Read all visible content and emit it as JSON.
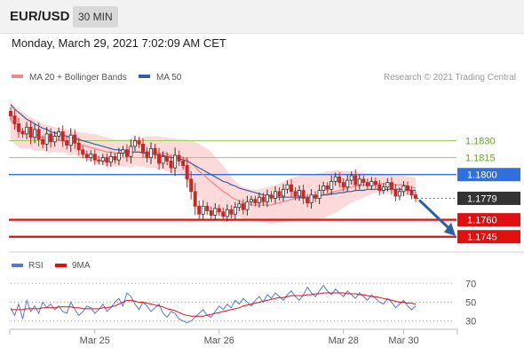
{
  "header": {
    "pair": "EUR/USD",
    "timeframe": "30 MIN",
    "datetime": "Monday, March 29, 2021 7:02:09 AM CET"
  },
  "colors": {
    "price_up": "#333333",
    "price_down": "#c62828",
    "ma20": "#ef8a8a",
    "bollinger_fill": "#fbd3d3",
    "ma50": "#3a5fa0",
    "resistance": "#9ccb5e",
    "pivot": "#2f6fe0",
    "support": "#e01010",
    "current": "#333333",
    "rsi": "#5577dd",
    "rsi_ma": "#e01010",
    "arrow": "#2f5e9e"
  },
  "chart_data": [
    {
      "type": "candlestick",
      "legend": [
        {
          "name": "MA 20 + Bollinger Bands",
          "color": "#ef8a8a"
        },
        {
          "name": "MA 50",
          "color": "#3a5fa0"
        }
      ],
      "watermark": "Research © 2021 Trading Central",
      "ylim": [
        1.1733,
        1.1876
      ],
      "x_ticks": [
        {
          "label": "Mar 25",
          "index": 21
        },
        {
          "label": "Mar 26",
          "index": 52
        },
        {
          "label": "Mar 28",
          "index": 83
        },
        {
          "label": "Mar 30",
          "index": 98
        }
      ],
      "levels": [
        {
          "label": "1.1830",
          "value": 1.183,
          "kind": "resistance"
        },
        {
          "label": "1.1815",
          "value": 1.1815,
          "kind": "resistance"
        },
        {
          "label": "1.1800",
          "value": 1.18,
          "kind": "pivot"
        },
        {
          "label": "1.1779",
          "value": 1.1779,
          "kind": "current"
        },
        {
          "label": "1.1760",
          "value": 1.176,
          "kind": "support"
        },
        {
          "label": "1.1745",
          "value": 1.1745,
          "kind": "support"
        }
      ],
      "close": [
        1.1852,
        1.1845,
        1.1838,
        1.1836,
        1.1842,
        1.1833,
        1.184,
        1.1831,
        1.1827,
        1.1836,
        1.1829,
        1.1834,
        1.1838,
        1.183,
        1.1826,
        1.1835,
        1.1828,
        1.1822,
        1.1818,
        1.1815,
        1.1818,
        1.1813,
        1.1812,
        1.1815,
        1.1811,
        1.1816,
        1.1813,
        1.1819,
        1.1822,
        1.1816,
        1.1825,
        1.183,
        1.1827,
        1.182,
        1.1815,
        1.1823,
        1.1818,
        1.181,
        1.1816,
        1.1812,
        1.1806,
        1.1817,
        1.1812,
        1.1808,
        1.1796,
        1.1785,
        1.1772,
        1.1765,
        1.1772,
        1.1768,
        1.1764,
        1.177,
        1.1767,
        1.1763,
        1.1769,
        1.1765,
        1.1771,
        1.1774,
        1.1769,
        1.1776,
        1.1778,
        1.1775,
        1.178,
        1.1776,
        1.1782,
        1.1779,
        1.1785,
        1.1781,
        1.1787,
        1.1791,
        1.1785,
        1.1781,
        1.1786,
        1.1779,
        1.1775,
        1.1782,
        1.1779,
        1.1786,
        1.179,
        1.1787,
        1.1794,
        1.1798,
        1.1793,
        1.1789,
        1.1795,
        1.1799,
        1.1791,
        1.1796,
        1.1793,
        1.179,
        1.1794,
        1.1791,
        1.1786,
        1.1789,
        1.1793,
        1.1787,
        1.1781,
        1.1785,
        1.179,
        1.1786,
        1.1782,
        1.1779
      ],
      "ma20": [
        1.1848,
        1.1844,
        1.1841,
        1.1839,
        1.1838,
        1.1837,
        1.1835,
        1.1834,
        1.1833,
        1.1832,
        1.1831,
        1.1831,
        1.183,
        1.183,
        1.1829,
        1.1828,
        1.1828,
        1.1827,
        1.1826,
        1.1825,
        1.1824,
        1.1823,
        1.1822,
        1.1821,
        1.182,
        1.182,
        1.1819,
        1.1819,
        1.1819,
        1.1819,
        1.1819,
        1.182,
        1.182,
        1.182,
        1.182,
        1.182,
        1.182,
        1.1819,
        1.1819,
        1.1818,
        1.1817,
        1.1817,
        1.1816,
        1.1815,
        1.1813,
        1.181,
        1.1807,
        1.1803,
        1.18,
        1.1797,
        1.1794,
        1.1791,
        1.1788,
        1.1785,
        1.1783,
        1.178,
        1.1778,
        1.1777,
        1.1775,
        1.1774,
        1.1773,
        1.1773,
        1.1773,
        1.1773,
        1.1773,
        1.1773,
        1.1774,
        1.1775,
        1.1776,
        1.1777,
        1.1778,
        1.1779,
        1.1779,
        1.178,
        1.178,
        1.178,
        1.1781,
        1.1781,
        1.1782,
        1.1783,
        1.1784,
        1.1785,
        1.1786,
        1.1787,
        1.1788,
        1.1789,
        1.179,
        1.179,
        1.1791,
        1.1791,
        1.1792,
        1.1792,
        1.1792,
        1.1792,
        1.1792,
        1.1792,
        1.1791,
        1.1791,
        1.1791,
        1.179,
        1.1789,
        1.1788
      ],
      "bb_upper": [
        1.1864,
        1.1861,
        1.1858,
        1.1855,
        1.1853,
        1.1851,
        1.1849,
        1.1847,
        1.1845,
        1.1844,
        1.1843,
        1.1842,
        1.1841,
        1.184,
        1.184,
        1.1839,
        1.1838,
        1.1838,
        1.1837,
        1.1837,
        1.1836,
        1.1836,
        1.1835,
        1.1834,
        1.1833,
        1.1832,
        1.1831,
        1.1831,
        1.1831,
        1.1831,
        1.1832,
        1.1832,
        1.1833,
        1.1833,
        1.1834,
        1.1834,
        1.1834,
        1.1834,
        1.1833,
        1.1833,
        1.1832,
        1.1832,
        1.1831,
        1.1831,
        1.1831,
        1.183,
        1.1829,
        1.1827,
        1.1825,
        1.1823,
        1.182,
        1.1816,
        1.1812,
        1.1808,
        1.1803,
        1.1798,
        1.1794,
        1.1791,
        1.1789,
        1.1788,
        1.1787,
        1.1787,
        1.1787,
        1.1788,
        1.1789,
        1.179,
        1.1791,
        1.1792,
        1.1794,
        1.1796,
        1.1797,
        1.1798,
        1.1799,
        1.18,
        1.18,
        1.18,
        1.1801,
        1.1801,
        1.1802,
        1.1803,
        1.1803,
        1.1804,
        1.1804,
        1.1803,
        1.1803,
        1.1803,
        1.1803,
        1.1802,
        1.1802,
        1.1801,
        1.1801,
        1.18,
        1.18,
        1.18,
        1.18,
        1.1799,
        1.1799,
        1.1799,
        1.1799,
        1.1798,
        1.1798,
        1.1797
      ],
      "bb_lower": [
        1.1832,
        1.1827,
        1.1824,
        1.1823,
        1.1823,
        1.1823,
        1.1821,
        1.1821,
        1.1821,
        1.182,
        1.1819,
        1.182,
        1.1819,
        1.182,
        1.1818,
        1.1817,
        1.1818,
        1.1816,
        1.1815,
        1.1813,
        1.1812,
        1.181,
        1.1809,
        1.1808,
        1.1807,
        1.1808,
        1.1807,
        1.1807,
        1.1807,
        1.1807,
        1.1806,
        1.1808,
        1.1807,
        1.1807,
        1.1806,
        1.1806,
        1.1806,
        1.1804,
        1.1805,
        1.1803,
        1.1802,
        1.1802,
        1.1801,
        1.1799,
        1.1795,
        1.179,
        1.1785,
        1.1779,
        1.1775,
        1.1771,
        1.1768,
        1.1766,
        1.1764,
        1.1762,
        1.1763,
        1.1762,
        1.1762,
        1.1763,
        1.1761,
        1.176,
        1.1759,
        1.1759,
        1.1759,
        1.1758,
        1.1757,
        1.1756,
        1.1757,
        1.1758,
        1.1758,
        1.1758,
        1.1759,
        1.176,
        1.1759,
        1.176,
        1.176,
        1.176,
        1.1761,
        1.1761,
        1.1762,
        1.1763,
        1.1765,
        1.1766,
        1.1768,
        1.1771,
        1.1773,
        1.1775,
        1.1777,
        1.1778,
        1.178,
        1.1781,
        1.1783,
        1.1784,
        1.1784,
        1.1784,
        1.1784,
        1.1785,
        1.1783,
        1.1783,
        1.1783,
        1.1782,
        1.178,
        1.1779
      ],
      "ma50": [
        1.1862,
        1.1858,
        1.1855,
        1.1852,
        1.1849,
        1.1847,
        1.1845,
        1.1843,
        1.1841,
        1.184,
        1.1838,
        1.1837,
        1.1836,
        1.1835,
        1.1834,
        1.1833,
        1.1832,
        1.1831,
        1.183,
        1.1829,
        1.1828,
        1.1827,
        1.1826,
        1.1825,
        1.1824,
        1.1823,
        1.1822,
        1.1822,
        1.1821,
        1.1821,
        1.182,
        1.182,
        1.182,
        1.1819,
        1.1819,
        1.1818,
        1.1818,
        1.1817,
        1.1817,
        1.1816,
        1.1815,
        1.1815,
        1.1814,
        1.1813,
        1.1812,
        1.181,
        1.1808,
        1.1806,
        1.1804,
        1.1802,
        1.18,
        1.1798,
        1.1796,
        1.1794,
        1.1793,
        1.1791,
        1.179,
        1.1788,
        1.1787,
        1.1786,
        1.1785,
        1.1784,
        1.1783,
        1.1782,
        1.1781,
        1.1781,
        1.178,
        1.178,
        1.178,
        1.178,
        1.178,
        1.178,
        1.178,
        1.178,
        1.178,
        1.178,
        1.1781,
        1.1781,
        1.1782,
        1.1782,
        1.1783,
        1.1783,
        1.1784,
        1.1784,
        1.1785,
        1.1785,
        1.1786,
        1.1786,
        1.1786,
        1.1787,
        1.1787,
        1.1787,
        1.1787,
        1.1787,
        1.1787,
        1.1787,
        1.1787,
        1.1787,
        1.1787,
        1.1787,
        1.1786,
        1.1786
      ]
    },
    {
      "type": "line",
      "legend": [
        {
          "name": "RSI",
          "color": "#5577dd"
        },
        {
          "name": "9MA",
          "color": "#e01010"
        }
      ],
      "ylim": [
        22,
        78
      ],
      "y_ticks": [
        {
          "label": "70",
          "value": 70
        },
        {
          "label": "50",
          "value": 50
        },
        {
          "label": "30",
          "value": 30
        }
      ],
      "series": [
        {
          "name": "RSI",
          "values": [
            44,
            36,
            48,
            32,
            52,
            40,
            46,
            38,
            50,
            44,
            48,
            42,
            46,
            40,
            38,
            50,
            42,
            36,
            40,
            46,
            44,
            38,
            42,
            48,
            40,
            44,
            50,
            54,
            46,
            60,
            56,
            48,
            42,
            50,
            46,
            40,
            44,
            48,
            38,
            34,
            40,
            38,
            32,
            30,
            28,
            30,
            34,
            38,
            42,
            36,
            34,
            40,
            46,
            42,
            48,
            44,
            52,
            48,
            54,
            50,
            46,
            52,
            56,
            50,
            58,
            54,
            60,
            56,
            52,
            58,
            62,
            56,
            52,
            58,
            66,
            60,
            56,
            62,
            68,
            62,
            58,
            64,
            60,
            56,
            62,
            58,
            54,
            60,
            56,
            52,
            58,
            54,
            50,
            48,
            54,
            50,
            44,
            48,
            52,
            46,
            42,
            46
          ]
        },
        {
          "name": "9MA",
          "values": [
            42,
            42,
            42,
            42,
            43,
            43,
            43,
            43,
            44,
            44,
            44,
            44,
            45,
            45,
            45,
            45,
            44,
            44,
            43,
            43,
            43,
            43,
            43,
            44,
            44,
            45,
            46,
            48,
            50,
            52,
            52,
            51,
            50,
            50,
            49,
            48,
            47,
            46,
            45,
            43,
            42,
            41,
            39,
            37,
            36,
            35,
            35,
            35,
            35,
            36,
            37,
            38,
            39,
            40,
            41,
            42,
            43,
            44,
            46,
            47,
            48,
            49,
            50,
            51,
            52,
            53,
            54,
            55,
            55,
            56,
            57,
            57,
            57,
            57,
            58,
            58,
            59,
            59,
            60,
            60,
            60,
            60,
            60,
            60,
            59,
            59,
            59,
            58,
            58,
            57,
            56,
            56,
            55,
            54,
            53,
            52,
            51,
            50,
            50,
            49,
            49,
            48
          ]
        }
      ]
    }
  ]
}
